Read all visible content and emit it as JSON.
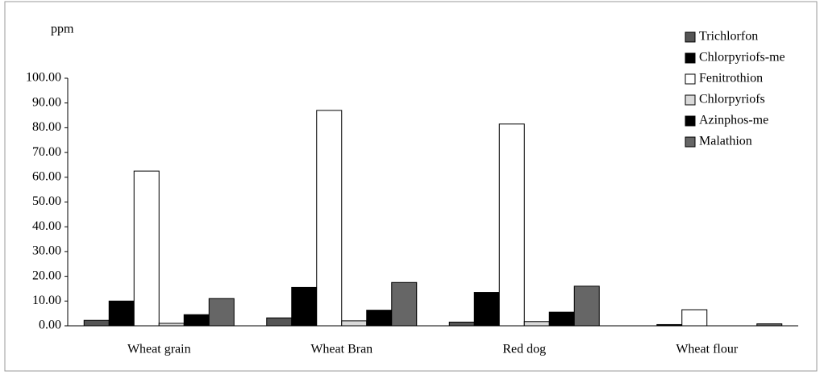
{
  "chart_data": {
    "type": "bar",
    "y_label": "ppm",
    "categories": [
      "Wheat grain",
      "Wheat Bran",
      "Red dog",
      "Wheat flour"
    ],
    "series": [
      {
        "name": "Trichlorfon",
        "color": "#555555",
        "values": [
          2.2,
          3.2,
          1.5,
          0
        ]
      },
      {
        "name": "Chlorpyriofs-me",
        "color": "#000000",
        "values": [
          10,
          15.5,
          13.5,
          0.5
        ]
      },
      {
        "name": "Fenitrothion",
        "color": "#ffffff",
        "values": [
          62.5,
          87,
          81.5,
          6.5
        ]
      },
      {
        "name": "Chlorpyriofs",
        "color": "#d9d9d9",
        "values": [
          1,
          2,
          1.7,
          0
        ]
      },
      {
        "name": "Azinphos-me",
        "color": "#000000",
        "values": [
          4.5,
          6.3,
          5.5,
          0
        ]
      },
      {
        "name": "Malathion",
        "color": "#666666",
        "values": [
          11,
          17.5,
          16,
          0.8
        ]
      }
    ],
    "ylim": [
      0,
      100
    ],
    "yticks": [
      {
        "value": 0,
        "label": "0.00"
      },
      {
        "value": 10,
        "label": "10.00"
      },
      {
        "value": 20,
        "label": "20.00"
      },
      {
        "value": 30,
        "label": "30.00"
      },
      {
        "value": 40,
        "label": "40.00"
      },
      {
        "value": 50,
        "label": "50.00"
      },
      {
        "value": 60,
        "label": "60.00"
      },
      {
        "value": 70,
        "label": "70.00"
      },
      {
        "value": 80,
        "label": "80.00"
      },
      {
        "value": 90,
        "label": "90.00"
      },
      {
        "value": 100,
        "label": "100.00"
      }
    ],
    "legend": "top-right"
  }
}
